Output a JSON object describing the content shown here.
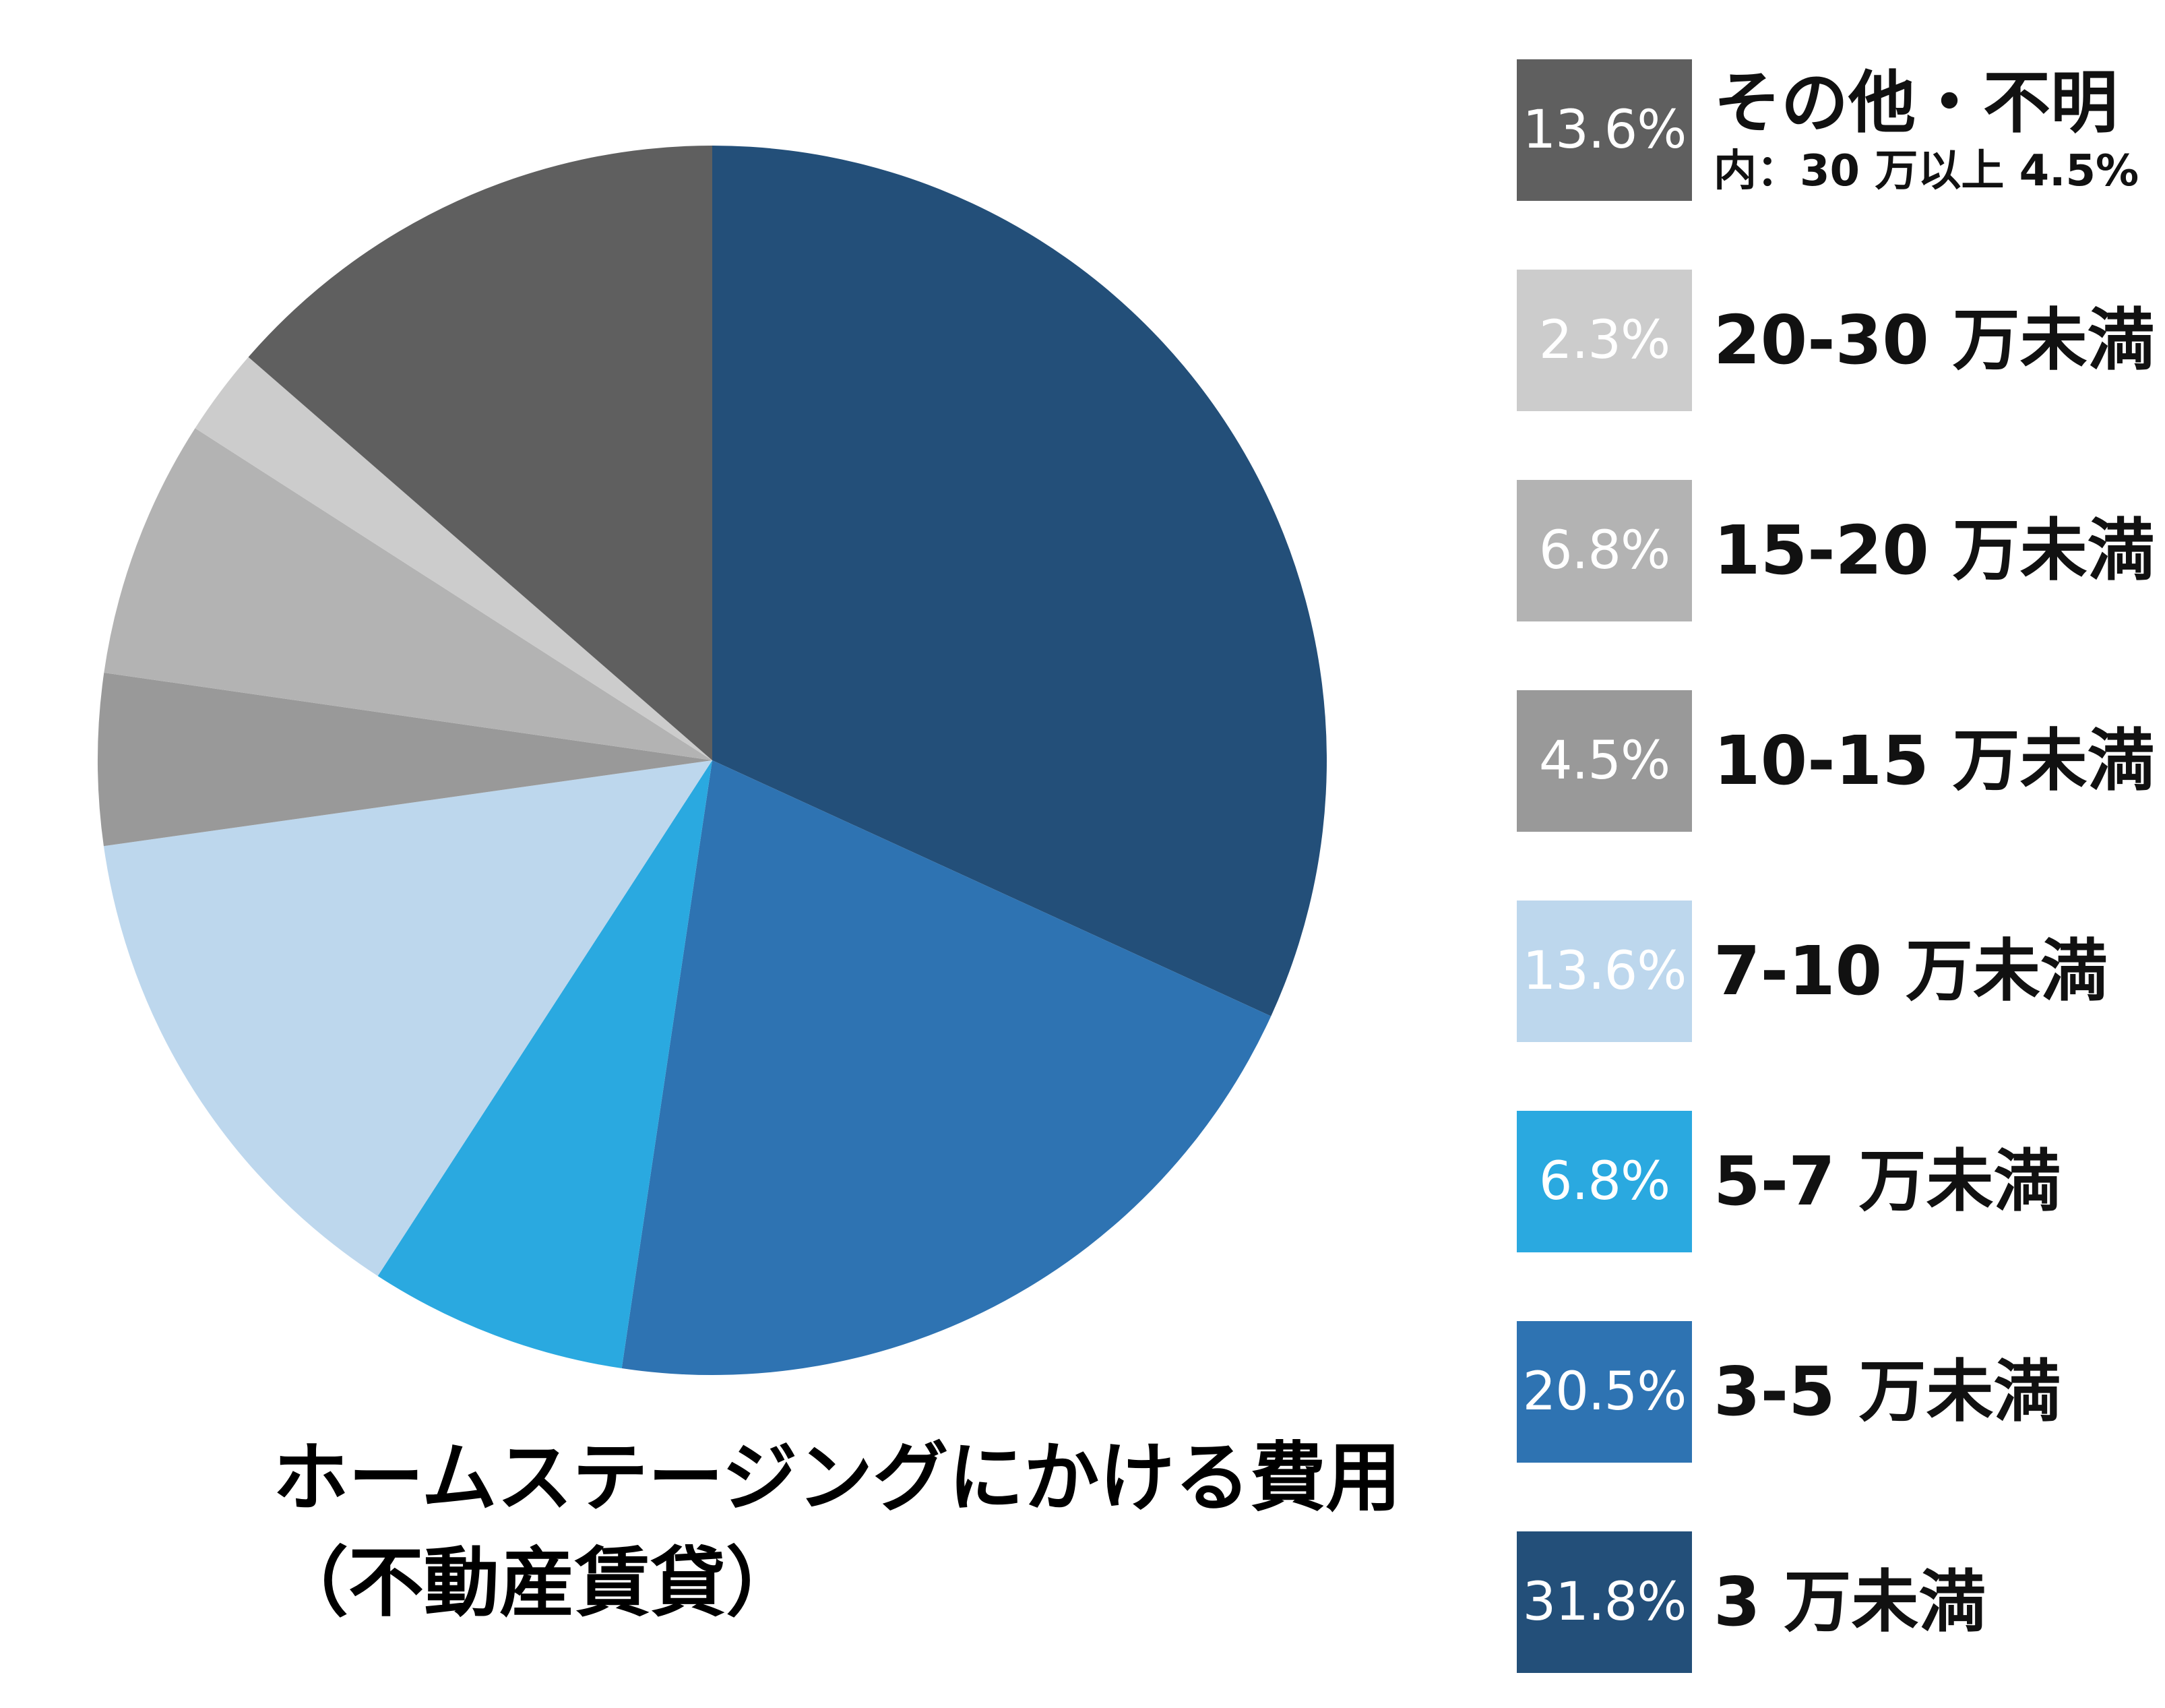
{
  "chart_data": {
    "type": "pie",
    "title": "ホームステージングにかける費用",
    "subtitle": "（不動産賃貸）",
    "start_angle": "12 o'clock",
    "direction": "clockwise",
    "slices": [
      {
        "label": "3 万未満",
        "value": 31.8,
        "value_label": "31.8%",
        "color": "#234f79"
      },
      {
        "label": "3-5 万未満",
        "value": 20.5,
        "value_label": "20.5%",
        "color": "#2e73b2"
      },
      {
        "label": "5-7 万未満",
        "value": 6.8,
        "value_label": "6.8%",
        "color": "#2aa9e0"
      },
      {
        "label": "7-10 万未満",
        "value": 13.6,
        "value_label": "13.6%",
        "color": "#bdd7ed"
      },
      {
        "label": "10-15 万未満",
        "value": 4.5,
        "value_label": "4.5%",
        "color": "#999999"
      },
      {
        "label": "15-20 万未満",
        "value": 6.8,
        "value_label": "6.8%",
        "color": "#b3b3b3"
      },
      {
        "label": "20-30 万未満",
        "value": 2.3,
        "value_label": "2.3%",
        "color": "#cccccc"
      },
      {
        "label": "その他・不明",
        "value": 13.6,
        "value_label": "13.6%",
        "color": "#5f5f5f",
        "note": "内：30 万以上 4.5%"
      }
    ],
    "legend_position": "right",
    "legend_order": [
      "その他・不明",
      "20-30 万未満",
      "15-20 万未満",
      "10-15 万未満",
      "7-10 万未満",
      "5-7 万未満",
      "3-5 万未満",
      "3 万未満"
    ]
  }
}
